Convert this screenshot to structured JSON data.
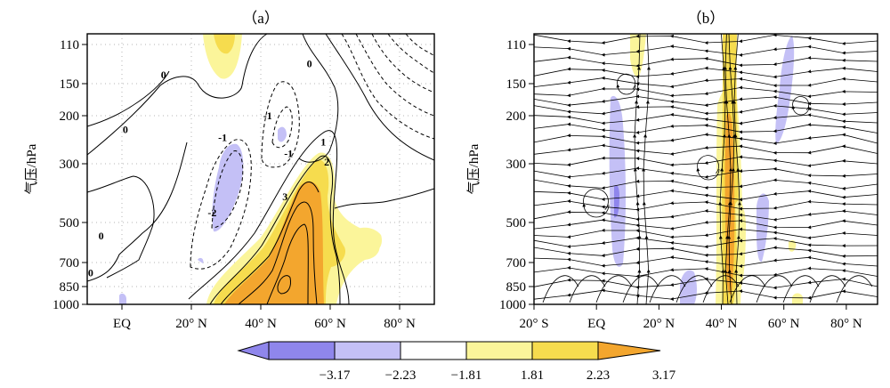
{
  "colors": {
    "neg_strong": "#8f86ec",
    "neg_weak": "#c4c0f6",
    "pos_weak": "#fbf59a",
    "pos_mid": "#f6dc4e",
    "pos_strong": "#f3a62e",
    "neutral": "#ffffff",
    "contour": "#000000",
    "grid": "#b5b5b5"
  },
  "chart_data": [
    {
      "type": "contour",
      "panel_label": "（a）",
      "ylabel": "气压/hPa",
      "xlabel": "",
      "y_scale": "log-pressure",
      "y_ticks": [
        "110",
        "150",
        "200",
        "300",
        "500",
        "700",
        "850",
        "1000"
      ],
      "y_tick_values": [
        110,
        150,
        200,
        300,
        500,
        700,
        850,
        1000
      ],
      "x_ticks": [
        "EQ",
        "20° N",
        "40° N",
        "60° N",
        "80° N"
      ],
      "x_tick_values": [
        0,
        20,
        40,
        60,
        80
      ],
      "xlim": [
        -10,
        90
      ],
      "ylim": [
        1000,
        100
      ],
      "grid": true,
      "contour_labels": [
        {
          "text": "0",
          "lat": 12,
          "p": 140
        },
        {
          "text": "0",
          "lat": 54,
          "p": 128
        },
        {
          "text": "0",
          "lat": 1,
          "p": 225
        },
        {
          "text": "0",
          "lat": -6,
          "p": 560
        },
        {
          "text": "0",
          "lat": -9,
          "p": 760
        },
        {
          "text": "-1",
          "lat": 29,
          "p": 240
        },
        {
          "text": "-1",
          "lat": 42,
          "p": 200
        },
        {
          "text": "-1",
          "lat": 48,
          "p": 275
        },
        {
          "text": "-2",
          "lat": 26,
          "p": 460
        },
        {
          "text": "1",
          "lat": 58,
          "p": 250
        },
        {
          "text": "2",
          "lat": 59,
          "p": 295
        },
        {
          "text": "3",
          "lat": 47,
          "p": 400
        }
      ]
    },
    {
      "type": "streamline",
      "panel_label": "（b）",
      "ylabel": "气压/hPa",
      "xlabel": "",
      "y_scale": "log-pressure",
      "y_ticks": [
        "110",
        "150",
        "200",
        "300",
        "500",
        "700",
        "850",
        "1000"
      ],
      "y_tick_values": [
        110,
        150,
        200,
        300,
        500,
        700,
        850,
        1000
      ],
      "x_ticks": [
        "20° S",
        "EQ",
        "20° N",
        "40° N",
        "60° N",
        "80° N"
      ],
      "x_tick_values": [
        -20,
        0,
        20,
        40,
        60,
        80
      ],
      "xlim": [
        -20,
        90
      ],
      "ylim": [
        1000,
        100
      ],
      "grid": false
    }
  ],
  "colorbar": {
    "labels": [
      "−3.17",
      "−2.23",
      "−1.81",
      "1.81",
      "2.23",
      "3.17"
    ],
    "values": [
      -3.17,
      -2.23,
      -1.81,
      1.81,
      2.23,
      3.17
    ]
  }
}
